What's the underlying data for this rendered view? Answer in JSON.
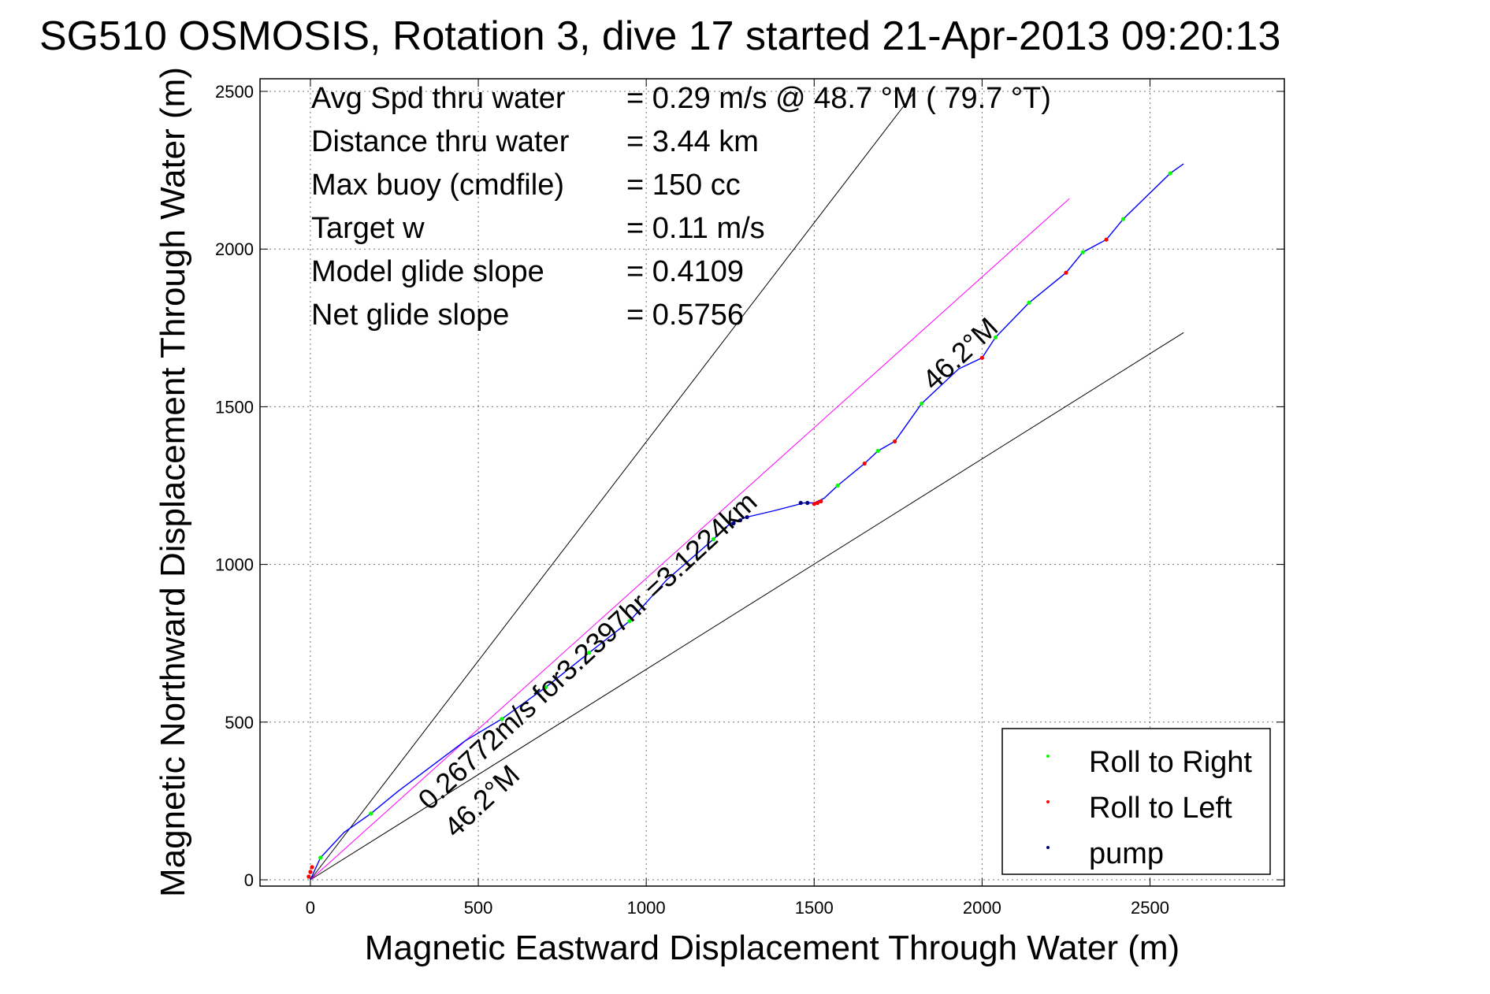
{
  "chart_data": {
    "type": "line",
    "title": "SG510 OSMOSIS, Rotation 3, dive 17 started 21-Apr-2013 09:20:13",
    "xlabel": "Magnetic Eastward Displacement Through Water (m)",
    "ylabel": "Magnetic Northward Displacement Through Water (m)",
    "xlim": [
      -150,
      2900
    ],
    "ylim": [
      -20,
      2540
    ],
    "xticks": [
      0,
      500,
      1000,
      1500,
      2000,
      2500
    ],
    "xtick_labels": [
      "0",
      "500",
      "1000",
      "1500",
      "2000",
      "2500"
    ],
    "yticks": [
      0,
      500,
      1000,
      1500,
      2000,
      2500
    ],
    "ytick_labels": [
      "0",
      "500",
      "1000",
      "1500",
      "2000",
      "2500"
    ],
    "grid": true,
    "legend_position": "bottom-right",
    "stats": [
      {
        "label": "Avg Spd thru water",
        "value": "=  0.29 m/s @  48.7 °M ( 79.7 °T)"
      },
      {
        "label": "Distance thru water",
        "value": "=  3.44 km"
      },
      {
        "label": "Max buoy (cmdfile)",
        "value": "= 150 cc"
      },
      {
        "label": "Target w",
        "value": "= 0.11 m/s"
      },
      {
        "label": "Model glide slope",
        "value": "= 0.4109"
      },
      {
        "label": "Net glide slope",
        "value": "= 0.5756"
      }
    ],
    "annotations": [
      {
        "text": "0.26772m/s for3.2397hr =3.1224km"
      },
      {
        "text": "46.2°M"
      },
      {
        "text": "46.2°M"
      }
    ],
    "reference_lines": [
      {
        "color": "#000000",
        "x": [
          0,
          1800
        ],
        "y": [
          0,
          2500
        ]
      },
      {
        "color": "#000000",
        "x": [
          0,
          2600
        ],
        "y": [
          0,
          1735
        ]
      },
      {
        "color": "#ff00ff",
        "x": [
          0,
          2260
        ],
        "y": [
          0,
          2160
        ]
      }
    ],
    "track": {
      "color": "#0000ff",
      "x": [
        0,
        30,
        100,
        180,
        260,
        360,
        460,
        570,
        700,
        830,
        950,
        1060,
        1200,
        1250,
        1300,
        1380,
        1470,
        1500,
        1530,
        1570,
        1650,
        1690,
        1740,
        1820,
        1930,
        2000,
        2040,
        2140,
        2250,
        2300,
        2370,
        2420,
        2560,
        2600
      ],
      "y": [
        0,
        70,
        150,
        210,
        280,
        360,
        440,
        510,
        610,
        720,
        820,
        950,
        1080,
        1130,
        1150,
        1170,
        1195,
        1195,
        1210,
        1250,
        1320,
        1360,
        1390,
        1510,
        1620,
        1655,
        1720,
        1830,
        1925,
        1990,
        2030,
        2095,
        2240,
        2270
      ]
    },
    "markers": [
      {
        "series": "Roll to Right",
        "color": "#00ff00",
        "x": [
          30,
          180,
          570,
          700,
          830,
          950,
          1200,
          1570,
          1690,
          1820,
          2040,
          2140,
          2300,
          2420,
          2560
        ],
        "y": [
          70,
          210,
          510,
          610,
          720,
          820,
          1080,
          1250,
          1360,
          1510,
          1720,
          1830,
          1990,
          2095,
          2240
        ]
      },
      {
        "series": "Roll to Left",
        "color": "#ff0000",
        "x": [
          -5,
          0,
          5,
          1500,
          1510,
          1520,
          1650,
          1740,
          2000,
          2250,
          2370
        ],
        "y": [
          10,
          25,
          40,
          1192,
          1195,
          1200,
          1320,
          1390,
          1655,
          1925,
          2030
        ]
      },
      {
        "series": "pump",
        "color": "#000080",
        "x": [
          1260,
          1280,
          1300,
          1460,
          1480
        ],
        "y": [
          1130,
          1140,
          1150,
          1195,
          1195
        ]
      }
    ],
    "legend": [
      {
        "label": "Roll to Right",
        "color": "#00ff00"
      },
      {
        "label": "Roll to Left",
        "color": "#ff0000"
      },
      {
        "label": "pump",
        "color": "#000080"
      }
    ]
  }
}
